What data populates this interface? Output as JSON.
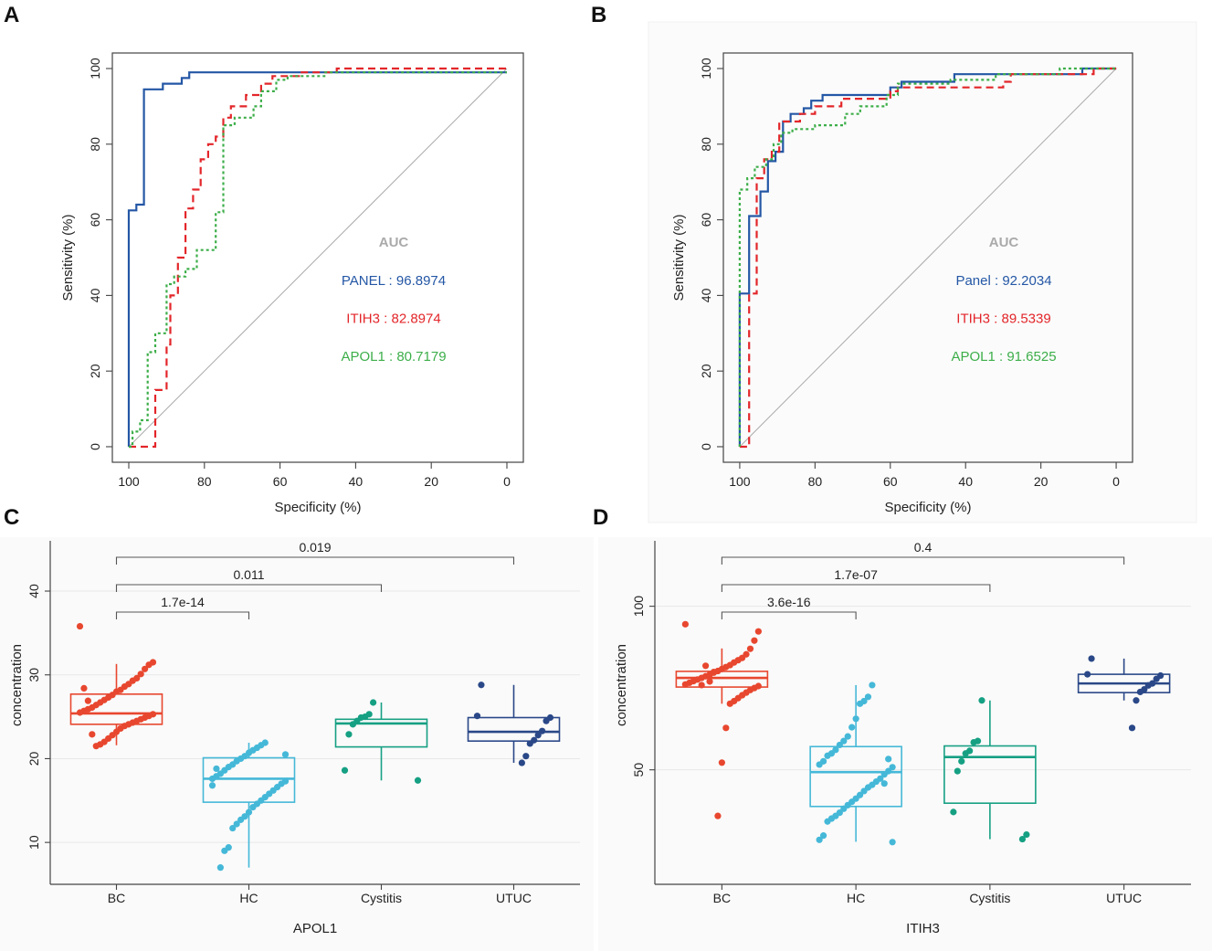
{
  "chart_data": [
    {
      "panel": "A",
      "type": "line",
      "title": "",
      "xlabel": "Specificity (%)",
      "ylabel": "Sensitivity (%)",
      "xlim": [
        100,
        0
      ],
      "ylim": [
        0,
        100
      ],
      "xticks": [
        "100",
        "80",
        "60",
        "40",
        "20",
        "0"
      ],
      "yticks": [
        "0",
        "20",
        "40",
        "60",
        "80",
        "100"
      ],
      "legend_title": "AUC",
      "colors": {
        "PANEL": "#2457a5",
        "ITIH3": "#e3262a",
        "APOL1": "#3cae49",
        "AUC": "#aaaaaa"
      },
      "series": [
        {
          "name": "PANEL",
          "label": "PANEL : 96.8974",
          "style": "solid",
          "color": "#2457a5",
          "points": [
            [
              100,
              0
            ],
            [
              100,
              62.5
            ],
            [
              98,
              62.5
            ],
            [
              98,
              64
            ],
            [
              96,
              64
            ],
            [
              96,
              94.5
            ],
            [
              91,
              94.5
            ],
            [
              91,
              96
            ],
            [
              86,
              96
            ],
            [
              86,
              97.5
            ],
            [
              84,
              97.5
            ],
            [
              84,
              99
            ],
            [
              0,
              99
            ]
          ]
        },
        {
          "name": "ITIH3",
          "label": "ITIH3 : 82.8974",
          "style": "dashed",
          "color": "#e3262a",
          "points": [
            [
              100,
              0
            ],
            [
              93,
              0
            ],
            [
              93,
              15
            ],
            [
              90,
              15
            ],
            [
              90,
              27
            ],
            [
              89,
              27
            ],
            [
              89,
              40
            ],
            [
              87,
              40
            ],
            [
              87,
              50
            ],
            [
              85,
              50
            ],
            [
              85,
              63
            ],
            [
              83,
              63
            ],
            [
              83,
              68
            ],
            [
              81,
              68
            ],
            [
              81,
              76
            ],
            [
              79,
              76
            ],
            [
              79,
              80
            ],
            [
              77,
              80
            ],
            [
              77,
              82
            ],
            [
              75,
              82
            ],
            [
              75,
              87
            ],
            [
              73,
              87
            ],
            [
              73,
              90
            ],
            [
              69,
              90
            ],
            [
              69,
              93
            ],
            [
              65,
              93
            ],
            [
              65,
              96
            ],
            [
              62,
              96
            ],
            [
              62,
              98
            ],
            [
              55,
              98
            ],
            [
              55,
              99
            ],
            [
              45,
              99
            ],
            [
              45,
              100
            ],
            [
              0,
              100
            ]
          ]
        },
        {
          "name": "APOL1",
          "label": "APOL1 : 80.7179",
          "style": "dotted",
          "color": "#3cae49",
          "points": [
            [
              100,
              0
            ],
            [
              99,
              0
            ],
            [
              99,
              4
            ],
            [
              97,
              4
            ],
            [
              97,
              7
            ],
            [
              95,
              7
            ],
            [
              95,
              25
            ],
            [
              93,
              25
            ],
            [
              93,
              30
            ],
            [
              90,
              30
            ],
            [
              90,
              43
            ],
            [
              88,
              43
            ],
            [
              88,
              45
            ],
            [
              85,
              45
            ],
            [
              85,
              47
            ],
            [
              82,
              47
            ],
            [
              82,
              52
            ],
            [
              77,
              52
            ],
            [
              77,
              62
            ],
            [
              75,
              62
            ],
            [
              75,
              85
            ],
            [
              72,
              85
            ],
            [
              72,
              87
            ],
            [
              67,
              87
            ],
            [
              67,
              90
            ],
            [
              65,
              90
            ],
            [
              65,
              94
            ],
            [
              61,
              94
            ],
            [
              61,
              97
            ],
            [
              58,
              97
            ],
            [
              58,
              98
            ],
            [
              48,
              98
            ],
            [
              48,
              99
            ],
            [
              0,
              99
            ]
          ]
        }
      ]
    },
    {
      "panel": "B",
      "type": "line",
      "title": "",
      "xlabel": "Specificity (%)",
      "ylabel": "Sensitivity (%)",
      "xlim": [
        100,
        0
      ],
      "ylim": [
        0,
        100
      ],
      "xticks": [
        "100",
        "80",
        "60",
        "40",
        "20",
        "0"
      ],
      "yticks": [
        "0",
        "20",
        "40",
        "60",
        "80",
        "100"
      ],
      "legend_title": "AUC",
      "colors": {
        "Panel": "#2457a5",
        "ITIH3": "#e3262a",
        "APOL1": "#3cae49",
        "AUC": "#aaaaaa"
      },
      "series": [
        {
          "name": "Panel",
          "label": "Panel : 92.2034",
          "style": "solid",
          "color": "#2457a5",
          "points": [
            [
              100,
              0
            ],
            [
              100,
              40.5
            ],
            [
              97.5,
              40.5
            ],
            [
              97.5,
              61
            ],
            [
              94.5,
              61
            ],
            [
              94.5,
              67.5
            ],
            [
              92.5,
              67.5
            ],
            [
              92.5,
              75.5
            ],
            [
              90.5,
              75.5
            ],
            [
              90.5,
              78
            ],
            [
              88.5,
              78
            ],
            [
              88.5,
              86
            ],
            [
              86.5,
              86
            ],
            [
              86.5,
              88
            ],
            [
              83,
              88
            ],
            [
              83,
              89.5
            ],
            [
              81,
              89.5
            ],
            [
              81,
              91.5
            ],
            [
              78,
              91.5
            ],
            [
              78,
              93
            ],
            [
              60,
              93
            ],
            [
              60,
              95
            ],
            [
              57,
              95
            ],
            [
              57,
              96.5
            ],
            [
              43,
              96.5
            ],
            [
              43,
              98.5
            ],
            [
              9,
              98.5
            ],
            [
              9,
              100
            ],
            [
              0,
              100
            ]
          ]
        },
        {
          "name": "ITIH3",
          "label": "ITIH3 : 89.5339",
          "style": "dashed",
          "color": "#e3262a",
          "points": [
            [
              100,
              0
            ],
            [
              97.5,
              0
            ],
            [
              97.5,
              40.5
            ],
            [
              95.5,
              40.5
            ],
            [
              95.5,
              71
            ],
            [
              93.5,
              71
            ],
            [
              93.5,
              76
            ],
            [
              91.5,
              76
            ],
            [
              91.5,
              78
            ],
            [
              89.5,
              78
            ],
            [
              89.5,
              86
            ],
            [
              84,
              86
            ],
            [
              84,
              88
            ],
            [
              80,
              88
            ],
            [
              80,
              90
            ],
            [
              73,
              90
            ],
            [
              73,
              92
            ],
            [
              60,
              92
            ],
            [
              60,
              94
            ],
            [
              58,
              94
            ],
            [
              58,
              95
            ],
            [
              30,
              95
            ],
            [
              30,
              96.5
            ],
            [
              28,
              96.5
            ],
            [
              28,
              98.5
            ],
            [
              6,
              98.5
            ],
            [
              6,
              100
            ],
            [
              0,
              100
            ]
          ]
        },
        {
          "name": "APOL1",
          "label": "APOL1 : 91.6525",
          "style": "dotted",
          "color": "#3cae49",
          "points": [
            [
              100,
              0
            ],
            [
              100,
              68
            ],
            [
              98,
              68
            ],
            [
              98,
              71
            ],
            [
              96,
              71
            ],
            [
              96,
              74
            ],
            [
              93,
              74
            ],
            [
              93,
              76
            ],
            [
              91,
              76
            ],
            [
              91,
              80
            ],
            [
              89,
              80
            ],
            [
              89,
              83
            ],
            [
              86,
              83
            ],
            [
              86,
              84
            ],
            [
              80,
              84
            ],
            [
              80,
              85
            ],
            [
              72,
              85
            ],
            [
              72,
              88
            ],
            [
              68,
              88
            ],
            [
              68,
              90
            ],
            [
              61,
              90
            ],
            [
              61,
              93
            ],
            [
              58,
              93
            ],
            [
              58,
              96
            ],
            [
              44,
              96
            ],
            [
              44,
              97
            ],
            [
              32,
              97
            ],
            [
              32,
              98.5
            ],
            [
              15,
              98.5
            ],
            [
              15,
              100
            ],
            [
              0,
              100
            ]
          ]
        }
      ]
    },
    {
      "panel": "C",
      "type": "box",
      "title": "",
      "xlabel": "APOL1",
      "ylabel": "concentration",
      "ylim": [
        5,
        46
      ],
      "yticks": [
        "10",
        "20",
        "30",
        "40"
      ],
      "categories": [
        "BC",
        "HC",
        "Cystitis",
        "UTUC"
      ],
      "colors": {
        "BC": "#e8472f",
        "HC": "#45b8d8",
        "Cystitis": "#16a083",
        "UTUC": "#2a4888"
      },
      "boxes": [
        {
          "group": "BC",
          "q1": 24.1,
          "median": 25.4,
          "q3": 27.7,
          "whisker_low": 21.6,
          "whisker_high": 31.3
        },
        {
          "group": "HC",
          "q1": 14.8,
          "median": 17.6,
          "q3": 20.1,
          "whisker_low": 7.0,
          "whisker_high": 21.9
        },
        {
          "group": "Cystitis",
          "q1": 21.4,
          "median": 24.2,
          "q3": 24.7,
          "whisker_low": 17.4,
          "whisker_high": 26.7
        },
        {
          "group": "UTUC",
          "q1": 22.1,
          "median": 23.2,
          "q3": 24.9,
          "whisker_low": 19.5,
          "whisker_high": 28.8
        }
      ],
      "points": {
        "BC": [
          35.8,
          31.5,
          31.2,
          30.7,
          30.1,
          29.6,
          29.3,
          28.9,
          28.6,
          28.2,
          28.0,
          27.6,
          27.3,
          27.0,
          26.7,
          26.4,
          26.1,
          25.9,
          25.7,
          25.5,
          25.3,
          25.1,
          24.9,
          24.7,
          24.5,
          24.3,
          24.1,
          23.9,
          23.6,
          23.2,
          22.8,
          22.4,
          22.0,
          21.7,
          21.5,
          22.9,
          26.9,
          28.4
        ],
        "HC": [
          21.9,
          21.6,
          21.3,
          21.0,
          20.7,
          20.3,
          20.0,
          19.7,
          19.3,
          19.0,
          18.6,
          18.2,
          17.9,
          17.6,
          17.3,
          17.0,
          16.6,
          16.2,
          15.8,
          15.4,
          15.0,
          14.6,
          14.2,
          13.6,
          13.1,
          12.7,
          12.2,
          11.7,
          9.4,
          9.0,
          7.0,
          18.8,
          16.8,
          20.5
        ],
        "Cystitis": [
          26.7,
          25.3,
          25.0,
          24.9,
          24.5,
          24.1,
          22.9,
          18.6,
          17.4
        ],
        "UTUC": [
          28.8,
          25.1,
          24.9,
          24.5,
          23.3,
          22.8,
          22.2,
          21.8,
          20.3,
          19.5
        ]
      },
      "comparisons": [
        {
          "from": "BC",
          "to": "HC",
          "label": "1.7e-14",
          "level": 1
        },
        {
          "from": "BC",
          "to": "Cystitis",
          "label": "0.011",
          "level": 2
        },
        {
          "from": "BC",
          "to": "UTUC",
          "label": "0.019",
          "level": 3
        }
      ]
    },
    {
      "panel": "D",
      "type": "box",
      "title": "",
      "xlabel": "ITIH3",
      "ylabel": "concentration",
      "ylim": [
        15,
        120
      ],
      "yticks": [
        "50",
        "100"
      ],
      "categories": [
        "BC",
        "HC",
        "Cystitis",
        "UTUC"
      ],
      "colors": {
        "BC": "#e8472f",
        "HC": "#45b8d8",
        "Cystitis": "#16a083",
        "UTUC": "#2a4888"
      },
      "boxes": [
        {
          "group": "BC",
          "q1": 75.3,
          "median": 78.1,
          "q3": 80.1,
          "whisker_low": 70.2,
          "whisker_high": 87.1
        },
        {
          "group": "HC",
          "q1": 38.8,
          "median": 49.3,
          "q3": 57.1,
          "whisker_low": 28.0,
          "whisker_high": 75.9
        },
        {
          "group": "Cystitis",
          "q1": 39.8,
          "median": 53.9,
          "q3": 57.3,
          "whisker_low": 28.8,
          "whisker_high": 71.2
        },
        {
          "group": "UTUC",
          "q1": 73.6,
          "median": 76.4,
          "q3": 79.2,
          "whisker_low": 71.2,
          "whisker_high": 84.0
        }
      ],
      "points": {
        "BC": [
          94.5,
          92.3,
          89.5,
          87.0,
          85.3,
          84.2,
          83.5,
          82.8,
          82.0,
          81.4,
          80.8,
          80.2,
          79.7,
          79.1,
          78.6,
          78.1,
          77.6,
          77.1,
          76.6,
          76.1,
          75.6,
          75.0,
          74.4,
          73.6,
          72.8,
          71.9,
          71.0,
          70.2,
          62.8,
          52.2,
          35.9,
          79.9,
          77.0,
          81.8,
          75.9
        ],
        "HC": [
          75.9,
          72.3,
          71.0,
          70.2,
          65.6,
          63.0,
          60.2,
          58.8,
          57.6,
          56.1,
          55.0,
          54.3,
          52.6,
          51.6,
          50.8,
          49.6,
          48.6,
          47.3,
          46.4,
          45.4,
          44.6,
          43.5,
          42.3,
          41.2,
          40.2,
          39.2,
          38.1,
          36.9,
          35.9,
          35.1,
          34.2,
          29.9,
          28.6,
          27.9,
          53.3,
          45.8
        ],
        "Cystitis": [
          71.2,
          58.8,
          58.4,
          55.8,
          55.0,
          52.6,
          49.6,
          37.1,
          30.2,
          28.8
        ],
        "UTUC": [
          84.0,
          79.2,
          78.8,
          77.8,
          76.4,
          75.8,
          74.6,
          73.8,
          71.2,
          62.8
        ]
      },
      "comparisons": [
        {
          "from": "BC",
          "to": "HC",
          "label": "3.6e-16",
          "level": 1
        },
        {
          "from": "BC",
          "to": "Cystitis",
          "label": "1.7e-07",
          "level": 2
        },
        {
          "from": "BC",
          "to": "UTUC",
          "label": "0.4",
          "level": 3
        }
      ]
    }
  ],
  "panel_letters": [
    "A",
    "B",
    "C",
    "D"
  ]
}
